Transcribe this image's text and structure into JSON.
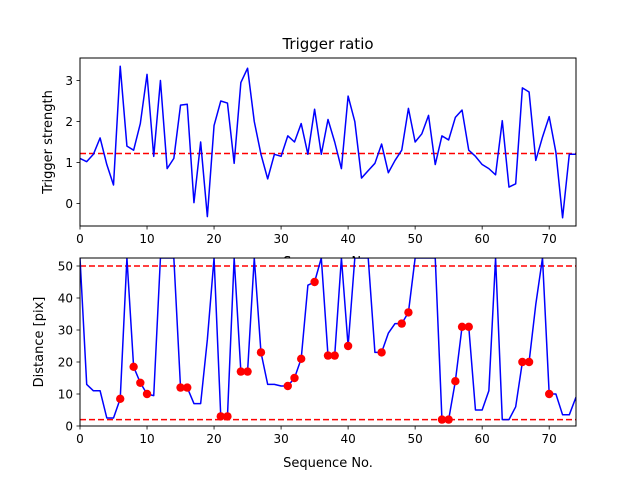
{
  "chart_data": [
    {
      "type": "line",
      "title": "Trigger ratio",
      "xlabel": "Sequence No.",
      "ylabel": "Trigger strength",
      "xlim": [
        0,
        74
      ],
      "ylim": [
        -0.55,
        3.55
      ],
      "xticks": [
        0,
        10,
        20,
        30,
        40,
        50,
        60,
        70
      ],
      "yticks": [
        0,
        1,
        2,
        3
      ],
      "grid": false,
      "series_color": "#0000ff",
      "threshold": {
        "values": [
          1.22
        ],
        "color": "#ff0000",
        "style": "dashed"
      },
      "x": [
        0,
        1,
        2,
        3,
        4,
        5,
        6,
        7,
        8,
        9,
        10,
        11,
        12,
        13,
        14,
        15,
        16,
        17,
        18,
        19,
        20,
        21,
        22,
        23,
        24,
        25,
        26,
        27,
        28,
        29,
        30,
        31,
        32,
        33,
        34,
        35,
        36,
        37,
        38,
        39,
        40,
        41,
        42,
        43,
        44,
        45,
        46,
        47,
        48,
        49,
        50,
        51,
        52,
        53,
        54,
        55,
        56,
        57,
        58,
        59,
        60,
        61,
        62,
        63,
        64,
        65,
        66,
        67,
        68,
        69,
        70,
        71,
        72,
        73,
        74
      ],
      "y": [
        1.1,
        1.02,
        1.2,
        1.6,
        0.95,
        0.45,
        3.35,
        1.4,
        1.3,
        1.95,
        3.15,
        1.15,
        3.0,
        0.85,
        1.1,
        2.4,
        2.42,
        0.02,
        1.5,
        -0.32,
        1.9,
        2.5,
        2.45,
        0.98,
        2.95,
        3.3,
        2.0,
        1.2,
        0.6,
        1.2,
        1.15,
        1.65,
        1.5,
        1.95,
        1.2,
        2.3,
        1.2,
        2.05,
        1.5,
        0.85,
        2.62,
        2.0,
        0.62,
        0.8,
        0.98,
        1.45,
        0.75,
        1.05,
        1.3,
        2.32,
        1.5,
        1.7,
        2.15,
        0.95,
        1.65,
        1.55,
        2.1,
        2.28,
        1.3,
        1.15,
        0.95,
        0.85,
        0.7,
        2.02,
        0.4,
        0.48,
        2.82,
        2.72,
        1.05,
        1.62,
        2.12,
        1.25,
        -0.35,
        1.2,
        1.2
      ]
    },
    {
      "type": "line",
      "title": "",
      "xlabel": "Sequence No.",
      "ylabel": "Distance [pix]",
      "xlim": [
        0,
        74
      ],
      "ylim": [
        0,
        52.5
      ],
      "xticks": [
        0,
        10,
        20,
        30,
        40,
        50,
        60,
        70
      ],
      "yticks": [
        0,
        10,
        20,
        30,
        40,
        50
      ],
      "grid": false,
      "series_color": "#0000ff",
      "marker_color": "#ff0000",
      "threshold": {
        "values": [
          50,
          2
        ],
        "color": "#ff0000",
        "style": "dashed"
      },
      "x": [
        0,
        1,
        2,
        3,
        4,
        5,
        6,
        7,
        8,
        9,
        10,
        11,
        12,
        13,
        14,
        15,
        16,
        17,
        18,
        19,
        20,
        21,
        22,
        23,
        24,
        25,
        26,
        27,
        28,
        29,
        30,
        31,
        32,
        33,
        34,
        35,
        36,
        37,
        38,
        39,
        40,
        41,
        42,
        43,
        44,
        45,
        46,
        47,
        48,
        49,
        50,
        51,
        52,
        53,
        54,
        55,
        56,
        57,
        58,
        59,
        60,
        61,
        62,
        63,
        64,
        65,
        66,
        67,
        68,
        69,
        70,
        71,
        72,
        73,
        74
      ],
      "y": [
        52.5,
        13,
        11,
        11,
        2.5,
        2.5,
        8.5,
        52.5,
        18.5,
        13.5,
        10,
        9.5,
        52.5,
        52.5,
        52.5,
        12,
        12,
        7,
        7,
        27,
        52.5,
        3,
        3,
        52.5,
        17,
        17,
        52.5,
        23,
        13,
        13,
        12.5,
        12.5,
        15,
        21,
        44,
        45,
        52.5,
        22,
        22,
        52.5,
        25,
        52.5,
        52.5,
        52.5,
        23,
        23,
        29,
        32,
        32,
        35.5,
        52.5,
        52.5,
        52.5,
        52.5,
        2,
        2,
        14,
        31,
        31,
        5,
        5,
        11,
        52.5,
        2,
        2,
        6,
        20,
        20,
        38,
        52.5,
        10,
        10,
        3.5,
        3.5,
        9
      ],
      "markers": {
        "x": [
          6,
          8,
          9,
          10,
          15,
          16,
          21,
          22,
          24,
          25,
          27,
          31,
          32,
          33,
          35,
          37,
          38,
          40,
          45,
          48,
          49,
          54,
          55,
          56,
          57,
          58,
          66,
          67,
          70
        ],
        "y": [
          8.5,
          18.5,
          13.5,
          10,
          12,
          12,
          3,
          3,
          17,
          17,
          23,
          12.5,
          15,
          21,
          45,
          22,
          22,
          25,
          23,
          32,
          35.5,
          2,
          2,
          14,
          31,
          31,
          20,
          20,
          10
        ]
      }
    }
  ]
}
